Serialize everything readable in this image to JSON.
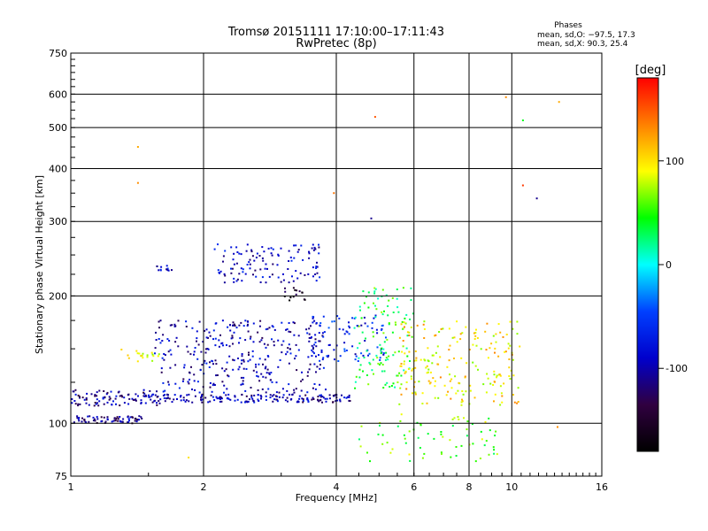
{
  "chart_data": {
    "type": "scatter",
    "title": "Tromsø 20151111 17:10:00–17:11:43",
    "subtitle": "RwPretec (8p)",
    "xlabel": "Frequency [MHz]",
    "ylabel": "Stationary phase Virtual Height [km]",
    "x_scale": "log",
    "y_scale": "log",
    "xlim": [
      1,
      16
    ],
    "ylim": [
      75,
      750
    ],
    "x_ticks": [
      1,
      2,
      4,
      6,
      8,
      10,
      16
    ],
    "y_ticks": [
      75,
      100,
      200,
      300,
      400,
      500,
      600,
      750
    ],
    "grid": true,
    "phases": {
      "heading": "Phases",
      "line_o": "mean, sd,O: −97.5, 17.3",
      "line_x": "mean, sd,X:  90.3, 25.4"
    },
    "colorbar": {
      "label": "[deg]",
      "range": [
        -180,
        180
      ],
      "ticks": [
        100,
        0,
        -100
      ],
      "colors": [
        "#ff0000",
        "#ff8000",
        "#ffff00",
        "#00ff00",
        "#00ffff",
        "#0040ff",
        "#0000cc",
        "#300040",
        "#000000"
      ]
    },
    "clusters": [
      {
        "x": [
          1.0,
          1.45
        ],
        "y": [
          100,
          104
        ],
        "n": 70,
        "phase": -110
      },
      {
        "x": [
          1.0,
          1.6
        ],
        "y": [
          110,
          120
        ],
        "n": 90,
        "phase": -105
      },
      {
        "x": [
          1.45,
          4.3
        ],
        "y": [
          112,
          117
        ],
        "n": 180,
        "phase": -100
      },
      {
        "x": [
          1.55,
          3.8
        ],
        "y": [
          118,
          175
        ],
        "n": 320,
        "phase": -95
      },
      {
        "x": [
          2.1,
          3.7
        ],
        "y": [
          215,
          265
        ],
        "n": 120,
        "phase": -90
      },
      {
        "x": [
          1.55,
          1.7
        ],
        "y": [
          228,
          236
        ],
        "n": 12,
        "phase": -85
      },
      {
        "x": [
          3.05,
          3.4
        ],
        "y": [
          195,
          210
        ],
        "n": 15,
        "phase": -150
      },
      {
        "x": [
          3.5,
          5.2
        ],
        "y": [
          140,
          180
        ],
        "n": 90,
        "phase": -70
      },
      {
        "x": [
          4.4,
          6.0
        ],
        "y": [
          120,
          210
        ],
        "n": 120,
        "phase": 40
      },
      {
        "x": [
          5.5,
          10.5
        ],
        "y": [
          110,
          175
        ],
        "n": 200,
        "phase": 100
      },
      {
        "x": [
          4.5,
          9.5
        ],
        "y": [
          80,
          105
        ],
        "n": 70,
        "phase": 60
      },
      {
        "x": [
          1.3,
          1.6
        ],
        "y": [
          140,
          150
        ],
        "n": 20,
        "phase": 90
      }
    ],
    "outliers": [
      {
        "x": 1.42,
        "y": 450,
        "phase": 120
      },
      {
        "x": 1.42,
        "y": 370,
        "phase": 130
      },
      {
        "x": 3.95,
        "y": 350,
        "phase": 140
      },
      {
        "x": 4.9,
        "y": 530,
        "phase": 150
      },
      {
        "x": 4.8,
        "y": 305,
        "phase": -110
      },
      {
        "x": 9.7,
        "y": 590,
        "phase": 130
      },
      {
        "x": 10.6,
        "y": 520,
        "phase": 40
      },
      {
        "x": 10.6,
        "y": 365,
        "phase": 160
      },
      {
        "x": 11.4,
        "y": 340,
        "phase": -110
      },
      {
        "x": 12.8,
        "y": 575,
        "phase": 120
      },
      {
        "x": 12.7,
        "y": 98,
        "phase": 130
      },
      {
        "x": 1.45,
        "y": 75,
        "phase": 140
      },
      {
        "x": 1.85,
        "y": 83,
        "phase": 100
      }
    ]
  }
}
